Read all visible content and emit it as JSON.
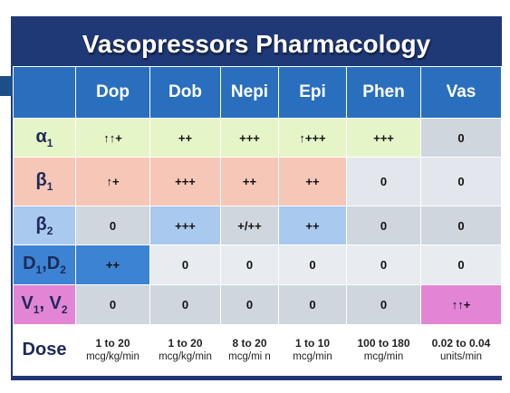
{
  "title": "Vasopressors Pharmacology",
  "columns": [
    "Dop",
    "Dob",
    "Nepi",
    "Epi",
    "Phen",
    "Vas"
  ],
  "rows": [
    {
      "label": "α",
      "sub": "1",
      "cells": [
        "↑↑+",
        "++",
        "+++",
        "↑+++",
        "+++",
        "0"
      ],
      "colors": [
        "#e6f5c8",
        "#e6f5c8",
        "#e6f5c8",
        "#e6f5c8",
        "#e6f5c8",
        "#cfd6de"
      ]
    },
    {
      "label": "β",
      "sub": "1",
      "cells": [
        "↑+",
        "+++",
        "++",
        "++",
        "0",
        "0"
      ],
      "colors": [
        "#f6c6b7",
        "#f6c6b7",
        "#f6c6b7",
        "#f6c6b7",
        "#e3e7ed",
        "#e3e7ed"
      ]
    },
    {
      "label": "β",
      "sub": "2",
      "cells": [
        "0",
        "+++",
        "+/++",
        "++",
        "0",
        "0"
      ],
      "colors": [
        "#cfd6de",
        "#a9c9ef",
        "#cfd6de",
        "#a9c9ef",
        "#cfd6de",
        "#cfd6de"
      ]
    },
    {
      "label": "D",
      "sub": "1",
      "label2": ",D",
      "sub2": "2",
      "cells": [
        "++",
        "0",
        "0",
        "0",
        "0",
        "0"
      ],
      "colors": [
        "#3c83d3",
        "#e8ebf0",
        "#e8ebf0",
        "#e8ebf0",
        "#e8ebf0",
        "#e8ebf0"
      ]
    },
    {
      "label": "V",
      "sub": "1",
      "label2": ", V",
      "sub2": "2",
      "cells": [
        "0",
        "0",
        "0",
        "0",
        "0",
        "↑↑+"
      ],
      "colors": [
        "#cfd6de",
        "#cfd6de",
        "#cfd6de",
        "#cfd6de",
        "#cfd6de",
        "#e285d5"
      ]
    }
  ],
  "rowhead_colors": [
    "#e6f5c8",
    "#f6c6b7",
    "#a9c9ef",
    "#3c83d3",
    "#e285d5"
  ],
  "dose": {
    "label": "Dose",
    "cells": [
      {
        "amount": "1 to 20",
        "unit": "mcg/kg/min"
      },
      {
        "amount": "1 to 20",
        "unit": "mcg/kg/min"
      },
      {
        "amount": "8 to 20",
        "unit": "mcg/mi n"
      },
      {
        "amount": "1 to 10",
        "unit": "mcg/min"
      },
      {
        "amount": "100 to 180",
        "unit": "mcg/min"
      },
      {
        "amount": "0.02 to 0.04",
        "unit": "units/min"
      }
    ]
  }
}
